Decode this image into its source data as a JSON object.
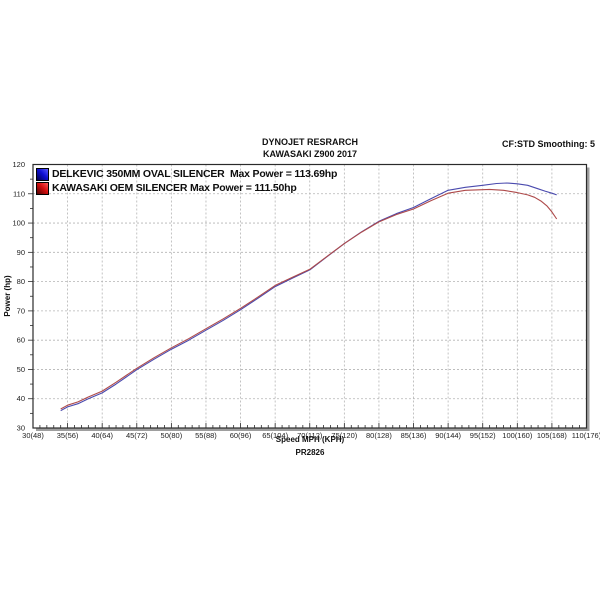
{
  "header": {
    "title": "DYNOJET RESRARCH",
    "subtitle": "KAWASAKI Z900 2017",
    "smoothing_note": "CF:STD Smoothing: 5"
  },
  "chart_data": {
    "type": "line",
    "title": "DYNOJET RESRARCH",
    "subtitle": "KAWASAKI Z900 2017",
    "xlabel": "Speed MPH (KPH)",
    "ylabel": "Power (hp)",
    "footnote": "PR2826",
    "xlim": [
      30,
      110
    ],
    "ylim": [
      30,
      120
    ],
    "x_tick_values": [
      30,
      35,
      40,
      45,
      50,
      55,
      60,
      65,
      70,
      75,
      80,
      85,
      90,
      95,
      100,
      105,
      110
    ],
    "x_tick_labels": [
      "30(48)",
      "35(56)",
      "40(64)",
      "45(72)",
      "50(80)",
      "55(88)",
      "60(96)",
      "65(104)",
      "70(112)",
      "75(120)",
      "80(128)",
      "85(136)",
      "90(144)",
      "95(152)",
      "100(160)",
      "105(168)",
      "110(176)"
    ],
    "y_tick_values": [
      30,
      40,
      50,
      60,
      70,
      80,
      90,
      100,
      110,
      120
    ],
    "x_minor_step": 1,
    "y_minor_step": 5,
    "grid": true,
    "grid_color": "#b4b4b4",
    "axis_color": "#2b2b2b",
    "shadow_color": "#9e9e9e",
    "legend_position": "top-left",
    "series": [
      {
        "id": "delkevic",
        "name": "DELKEVIC 350MM OVAL SILENCER  Max Power = 113.69hp",
        "max_power_hp": 113.69,
        "line_color": "#4a4aae",
        "swatch_colors": [
          "#00004d",
          "#0f0fd6",
          "#5a5aff"
        ],
        "points": [
          [
            34,
            35.9
          ],
          [
            35,
            37.2
          ],
          [
            36.5,
            38.3
          ],
          [
            38,
            40.0
          ],
          [
            40,
            42.0
          ],
          [
            42,
            45.0
          ],
          [
            45,
            49.9
          ],
          [
            47.5,
            53.5
          ],
          [
            50,
            56.9
          ],
          [
            52.5,
            60.0
          ],
          [
            55,
            63.4
          ],
          [
            57.5,
            66.8
          ],
          [
            60,
            70.4
          ],
          [
            62.5,
            74.3
          ],
          [
            65,
            78.3
          ],
          [
            67.5,
            81.2
          ],
          [
            70,
            84.0
          ],
          [
            72.5,
            88.5
          ],
          [
            75,
            93.0
          ],
          [
            77.5,
            97.0
          ],
          [
            80,
            100.6
          ],
          [
            82.5,
            103.2
          ],
          [
            85,
            105.3
          ],
          [
            87.5,
            108.3
          ],
          [
            90,
            111.2
          ],
          [
            92.5,
            112.2
          ],
          [
            95,
            112.9
          ],
          [
            97,
            113.5
          ],
          [
            98.5,
            113.69
          ],
          [
            100,
            113.4
          ],
          [
            101.5,
            112.9
          ],
          [
            103,
            111.7
          ],
          [
            104,
            110.9
          ],
          [
            105,
            110.2
          ],
          [
            105.7,
            109.6
          ]
        ]
      },
      {
        "id": "oem",
        "name": "KAWASAKI OEM SILENCER Max Power = 111.50hp",
        "max_power_hp": 111.5,
        "line_color": "#ae4a4a",
        "swatch_colors": [
          "#4d0000",
          "#d60f0f",
          "#ff5a5a"
        ],
        "points": [
          [
            34,
            36.5
          ],
          [
            35,
            37.8
          ],
          [
            36.5,
            38.9
          ],
          [
            38,
            40.6
          ],
          [
            40,
            42.6
          ],
          [
            42,
            45.6
          ],
          [
            45,
            50.4
          ],
          [
            47.5,
            54.0
          ],
          [
            50,
            57.4
          ],
          [
            52.5,
            60.5
          ],
          [
            55,
            63.9
          ],
          [
            57.5,
            67.3
          ],
          [
            60,
            70.9
          ],
          [
            62.5,
            74.7
          ],
          [
            65,
            78.7
          ],
          [
            67.5,
            81.5
          ],
          [
            70,
            84.2
          ],
          [
            72.5,
            88.6
          ],
          [
            75,
            93.0
          ],
          [
            77.5,
            96.9
          ],
          [
            80,
            100.4
          ],
          [
            82.5,
            102.9
          ],
          [
            85,
            104.8
          ],
          [
            87.5,
            107.6
          ],
          [
            90,
            110.2
          ],
          [
            92.5,
            111.2
          ],
          [
            95,
            111.4
          ],
          [
            96,
            111.5
          ],
          [
            98,
            111.2
          ],
          [
            100,
            110.4
          ],
          [
            101.5,
            109.6
          ],
          [
            102.5,
            108.8
          ],
          [
            103.5,
            107.4
          ],
          [
            104.3,
            105.8
          ],
          [
            105,
            103.8
          ],
          [
            105.7,
            101.4
          ]
        ]
      }
    ]
  }
}
